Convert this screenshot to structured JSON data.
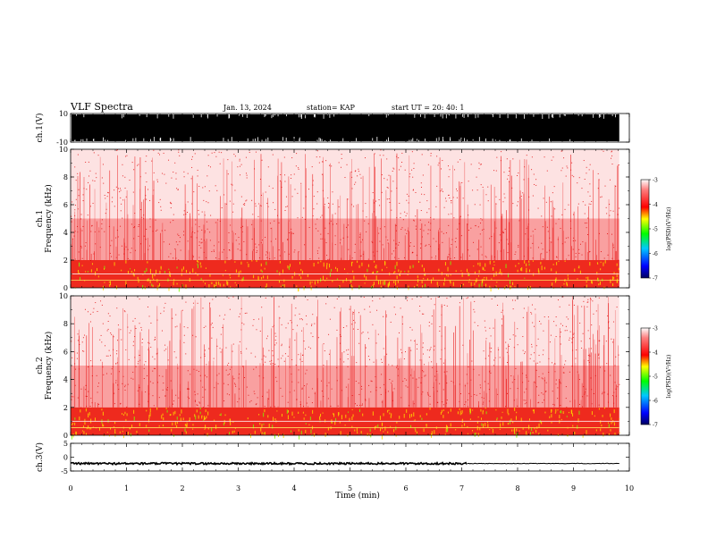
{
  "header": {
    "title": "VLF Spectra",
    "date": "Jan. 13, 2024",
    "station": "station= KAP",
    "start": "start  UT  =   20: 40: 1"
  },
  "chart_data": [
    {
      "type": "line",
      "panel": "ch1-waveform",
      "ylabel": "ch.1(V)",
      "ylim": [
        -10,
        10
      ],
      "y_ticks": [
        "10",
        "-10"
      ],
      "description_values": {
        "amplitude_range": [
          -10,
          10
        ],
        "clipped": true
      },
      "x": [
        0,
        9.82
      ],
      "xlim": [
        0,
        10
      ]
    },
    {
      "type": "heatmap",
      "panel": "ch1-spectrogram",
      "ylabel": "ch.1\nFrequency (kHz)",
      "ylim": [
        0,
        10
      ],
      "y_ticks": [
        "0",
        "2",
        "4",
        "6",
        "8",
        "10"
      ],
      "xlim": [
        0,
        10
      ],
      "data_extent_min": 9.82,
      "colorbar": {
        "label": "log(PSD)(V²/Hz)",
        "ticks": [
          "-3",
          "-4",
          "-5",
          "-6",
          "-7"
        ],
        "range": [
          -7,
          -3
        ],
        "colors": [
          "#000080",
          "#0000ff",
          "#00c0ff",
          "#00ff00",
          "#ffff00",
          "#ff0000",
          "#ffffff"
        ]
      },
      "bands": [
        {
          "f_kHz": [
            0,
            2
          ],
          "log_psd": -4.2
        },
        {
          "f_kHz": [
            2,
            5
          ],
          "log_psd": -4.8
        },
        {
          "f_kHz": [
            5,
            10
          ],
          "log_psd": -5.5
        }
      ]
    },
    {
      "type": "heatmap",
      "panel": "ch2-spectrogram",
      "ylabel": "ch.2\nFrequency (kHz)",
      "ylim": [
        0,
        10
      ],
      "y_ticks": [
        "0",
        "2",
        "4",
        "6",
        "8",
        "10"
      ],
      "xlim": [
        0,
        10
      ],
      "data_extent_min": 9.82,
      "colorbar": {
        "label": "log(PSD)(V²/Hz)",
        "ticks": [
          "-3",
          "-4",
          "-5",
          "-6",
          "-7"
        ],
        "range": [
          -7,
          -3
        ]
      },
      "bands": [
        {
          "f_kHz": [
            0,
            2
          ],
          "log_psd": -4.2
        },
        {
          "f_kHz": [
            2,
            5
          ],
          "log_psd": -4.8
        },
        {
          "f_kHz": [
            5,
            10
          ],
          "log_psd": -5.5
        }
      ]
    },
    {
      "type": "line",
      "panel": "ch3-waveform",
      "ylabel": "ch.3(V)",
      "ylim": [
        -5,
        5
      ],
      "y_ticks": [
        "5",
        "0",
        "-5"
      ],
      "baseline_V": -2.3,
      "segments": [
        {
          "t_min": [
            0,
            7.1
          ],
          "amplitude_V": 0.35
        },
        {
          "t_min": [
            7.1,
            9.82
          ],
          "amplitude_V": 0.1
        }
      ],
      "xlim": [
        0,
        10
      ]
    }
  ],
  "time_axis": {
    "label": "Time (min)",
    "ticks": [
      "0",
      "1",
      "2",
      "3",
      "4",
      "5",
      "6",
      "7",
      "8",
      "9",
      "10"
    ]
  }
}
